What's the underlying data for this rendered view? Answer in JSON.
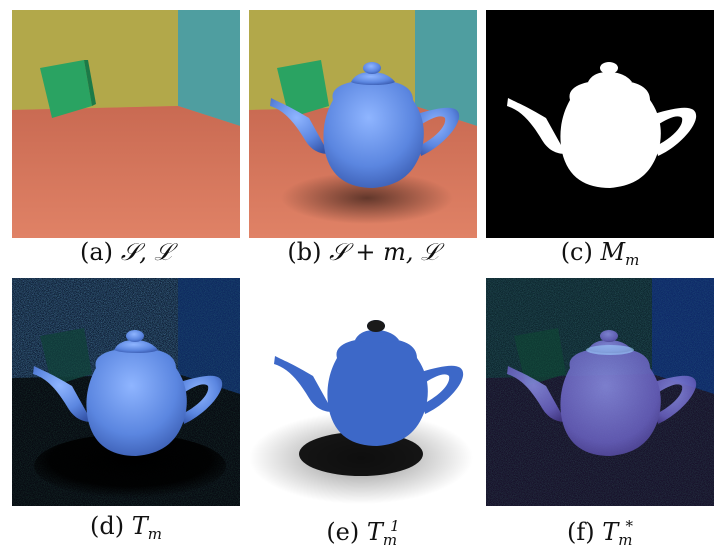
{
  "figure": {
    "panels": [
      {
        "id": "a",
        "letter": "(a)",
        "math": "𝒮, ℒ",
        "sub": "",
        "sup": ""
      },
      {
        "id": "b",
        "letter": "(b)",
        "math": "𝒮 + m, ℒ",
        "sub": "",
        "sup": ""
      },
      {
        "id": "c",
        "letter": "(c)",
        "math": "M",
        "sub": "m",
        "sup": ""
      },
      {
        "id": "d",
        "letter": "(d)",
        "math": "T",
        "sub": "m",
        "sup": ""
      },
      {
        "id": "e",
        "letter": "(e)",
        "math": "T",
        "sub": "m",
        "sup": "1"
      },
      {
        "id": "f",
        "letter": "(f)",
        "math": "T",
        "sub": "m",
        "sup": "*"
      }
    ]
  },
  "colors": {
    "floor": "#d9765c",
    "left_wall": "#b7ad4c",
    "right_wall": "#4f9ea0",
    "back_wall": "#a8a55a",
    "cube": "#2aa362",
    "teapot": "#5b86e0",
    "mask_bg": "#000000",
    "mask_fg": "#ffffff"
  }
}
